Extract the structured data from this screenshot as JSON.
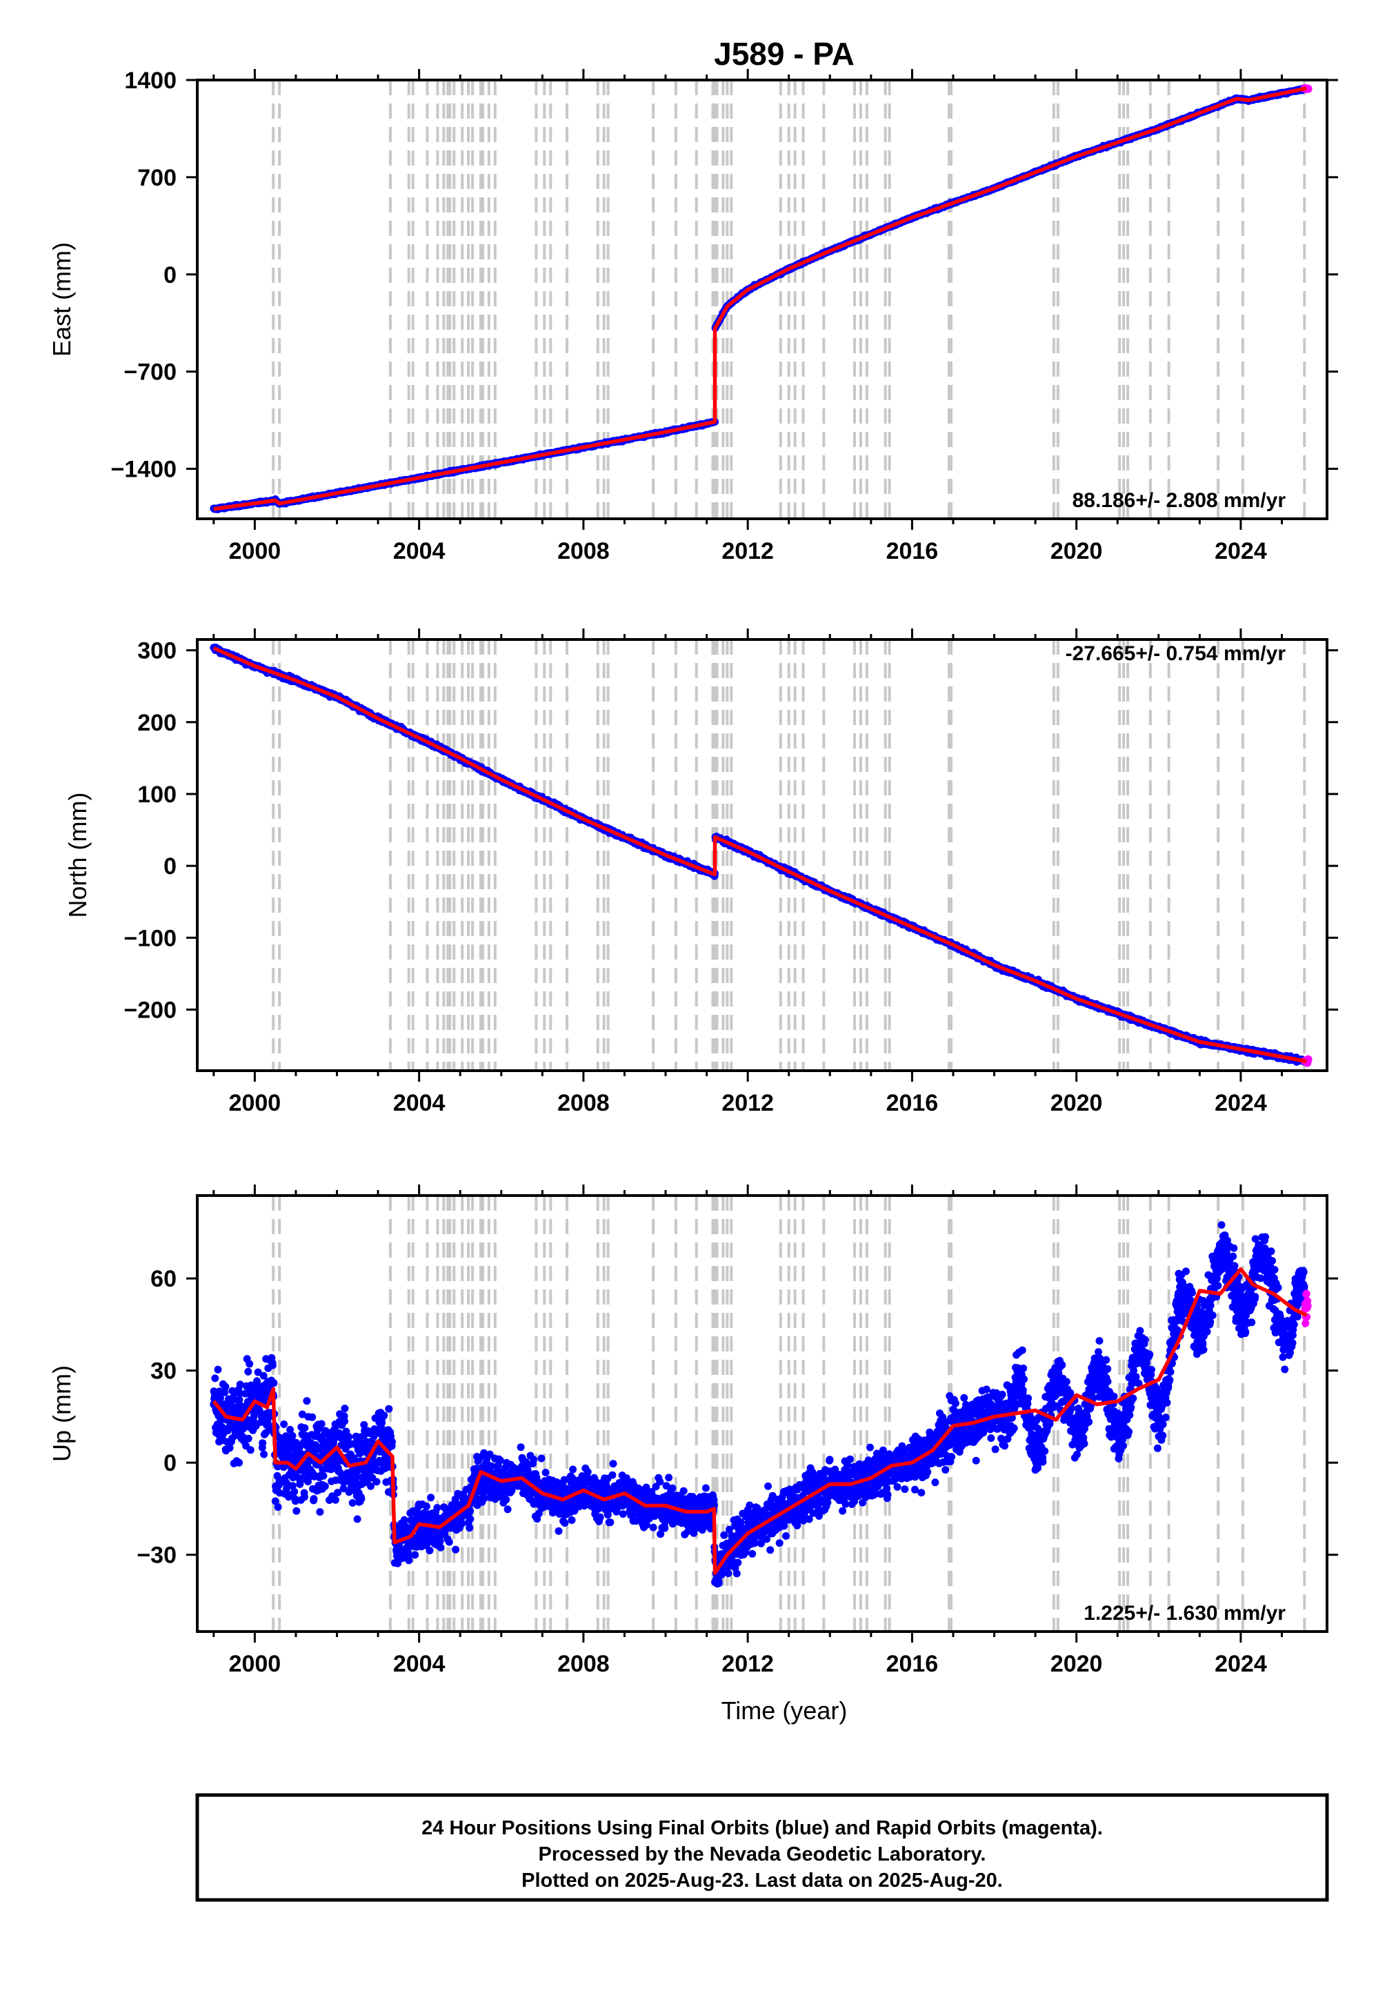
{
  "title": "J589 - PA",
  "colors": {
    "final_orbits": "#0000ff",
    "rapid_orbits": "#ff00ff",
    "trend": "#ff0000",
    "step_lines": "#c8c8c8"
  },
  "chart_data": [
    {
      "type": "scatter",
      "name": "east",
      "ylabel": "East (mm)",
      "xlabel": "",
      "xlim": [
        1998.6,
        2026.1
      ],
      "ylim": [
        -1760,
        1400
      ],
      "yticks": [
        1400,
        700,
        0,
        -700,
        -1400
      ],
      "ytick_labels": [
        "1400",
        "700",
        "0",
        "−700",
        "−1400"
      ],
      "xticks": [
        2000,
        2004,
        2008,
        2012,
        2016,
        2020,
        2024
      ],
      "rate_text": "88.186+/- 2.808 mm/yr",
      "rate_position": "bottom-right",
      "series_points": [
        [
          1999.0,
          -1690
        ],
        [
          2000.5,
          -1628
        ],
        [
          2000.6,
          -1650
        ],
        [
          2002.0,
          -1575
        ],
        [
          2004.0,
          -1465
        ],
        [
          2006.0,
          -1355
        ],
        [
          2008.0,
          -1245
        ],
        [
          2010.0,
          -1135
        ],
        [
          2011.2,
          -1062
        ],
        [
          2011.2,
          -390
        ],
        [
          2011.5,
          -230
        ],
        [
          2012.0,
          -110
        ],
        [
          2013.0,
          40
        ],
        [
          2014.0,
          170
        ],
        [
          2015.0,
          290
        ],
        [
          2016.0,
          410
        ],
        [
          2018.0,
          620
        ],
        [
          2020.0,
          850
        ],
        [
          2022.0,
          1050
        ],
        [
          2023.9,
          1265
        ],
        [
          2024.2,
          1255
        ],
        [
          2025.6,
          1340
        ]
      ]
    },
    {
      "type": "scatter",
      "name": "north",
      "ylabel": "North (mm)",
      "xlabel": "",
      "xlim": [
        1998.6,
        2026.1
      ],
      "ylim": [
        -285,
        315
      ],
      "yticks": [
        300,
        200,
        100,
        0,
        -100,
        -200
      ],
      "ytick_labels": [
        "300",
        "200",
        "100",
        "0",
        "−100",
        "−200"
      ],
      "xticks": [
        2000,
        2004,
        2008,
        2012,
        2016,
        2020,
        2024
      ],
      "rate_text": "-27.665+/- 0.754 mm/yr",
      "rate_position": "top-right",
      "series_points": [
        [
          1999.0,
          303
        ],
        [
          2000.0,
          278
        ],
        [
          2001.0,
          258
        ],
        [
          2002.0,
          235
        ],
        [
          2003.0,
          205
        ],
        [
          2004.0,
          178
        ],
        [
          2005.0,
          150
        ],
        [
          2006.0,
          120
        ],
        [
          2007.0,
          93
        ],
        [
          2008.0,
          65
        ],
        [
          2009.0,
          40
        ],
        [
          2010.0,
          15
        ],
        [
          2011.2,
          -12
        ],
        [
          2011.2,
          40
        ],
        [
          2012.0,
          20
        ],
        [
          2013.0,
          -8
        ],
        [
          2014.0,
          -35
        ],
        [
          2015.0,
          -60
        ],
        [
          2016.0,
          -85
        ],
        [
          2017.0,
          -110
        ],
        [
          2018.0,
          -138
        ],
        [
          2019.0,
          -160
        ],
        [
          2020.0,
          -185
        ],
        [
          2021.0,
          -205
        ],
        [
          2022.0,
          -225
        ],
        [
          2023.0,
          -245
        ],
        [
          2024.0,
          -255
        ],
        [
          2025.6,
          -272
        ]
      ]
    },
    {
      "type": "scatter",
      "name": "up",
      "ylabel": "Up (mm)",
      "xlabel": "Time (year)",
      "xlim": [
        1998.6,
        2026.1
      ],
      "ylim": [
        -55,
        87
      ],
      "yticks": [
        60,
        30,
        0,
        -30
      ],
      "ytick_labels": [
        "60",
        "30",
        "0",
        "−30"
      ],
      "xticks": [
        2000,
        2004,
        2008,
        2012,
        2016,
        2020,
        2024
      ],
      "rate_text": "1.225+/- 1.630 mm/yr",
      "rate_position": "bottom-right",
      "trend_points": [
        [
          1999.0,
          20
        ],
        [
          1999.3,
          15
        ],
        [
          1999.7,
          14
        ],
        [
          2000.0,
          20
        ],
        [
          2000.3,
          18
        ],
        [
          2000.45,
          24
        ],
        [
          2000.5,
          0
        ],
        [
          2000.8,
          0
        ],
        [
          2001.0,
          -2
        ],
        [
          2001.3,
          3
        ],
        [
          2001.6,
          0
        ],
        [
          2002.0,
          5
        ],
        [
          2002.3,
          -1
        ],
        [
          2002.7,
          0
        ],
        [
          2003.0,
          7
        ],
        [
          2003.35,
          2
        ],
        [
          2003.4,
          -26
        ],
        [
          2003.8,
          -24
        ],
        [
          2004.0,
          -20
        ],
        [
          2004.5,
          -21
        ],
        [
          2004.8,
          -18
        ],
        [
          2005.2,
          -14
        ],
        [
          2005.5,
          -3
        ],
        [
          2006.0,
          -6
        ],
        [
          2006.5,
          -5
        ],
        [
          2007.0,
          -10
        ],
        [
          2007.5,
          -12
        ],
        [
          2008.0,
          -9
        ],
        [
          2008.5,
          -12
        ],
        [
          2009.0,
          -10
        ],
        [
          2009.5,
          -14
        ],
        [
          2010.0,
          -14
        ],
        [
          2010.5,
          -16
        ],
        [
          2011.0,
          -16
        ],
        [
          2011.18,
          -15
        ],
        [
          2011.2,
          -36
        ],
        [
          2011.5,
          -30
        ],
        [
          2012.0,
          -23
        ],
        [
          2012.5,
          -19
        ],
        [
          2013.0,
          -15
        ],
        [
          2013.5,
          -11
        ],
        [
          2014.0,
          -7
        ],
        [
          2014.5,
          -7
        ],
        [
          2015.0,
          -5
        ],
        [
          2015.5,
          -1
        ],
        [
          2016.0,
          0
        ],
        [
          2016.5,
          4
        ],
        [
          2017.0,
          12
        ],
        [
          2017.5,
          13
        ],
        [
          2018.0,
          15
        ],
        [
          2018.5,
          16
        ],
        [
          2019.0,
          17
        ],
        [
          2019.5,
          14
        ],
        [
          2020.0,
          22
        ],
        [
          2020.5,
          19
        ],
        [
          2021.0,
          20
        ],
        [
          2021.5,
          24
        ],
        [
          2022.0,
          27
        ],
        [
          2022.5,
          40
        ],
        [
          2023.0,
          56
        ],
        [
          2023.5,
          55
        ],
        [
          2024.0,
          63
        ],
        [
          2024.3,
          58
        ],
        [
          2024.8,
          55
        ],
        [
          2025.3,
          50
        ],
        [
          2025.6,
          48
        ]
      ]
    }
  ],
  "step_lines_years": [
    2000.45,
    2000.6,
    2003.3,
    2003.75,
    2003.85,
    2004.2,
    2004.45,
    2004.6,
    2004.7,
    2004.75,
    2004.85,
    2005.05,
    2005.2,
    2005.3,
    2005.5,
    2005.55,
    2005.7,
    2005.85,
    2006.85,
    2007.05,
    2007.2,
    2007.6,
    2008.35,
    2008.5,
    2008.6,
    2009.7,
    2010.25,
    2010.75,
    2011.15,
    2011.2,
    2011.25,
    2011.4,
    2011.5,
    2011.6,
    2012.8,
    2013.0,
    2013.15,
    2013.35,
    2013.85,
    2014.6,
    2014.75,
    2014.9,
    2015.35,
    2015.45,
    2016.9,
    2016.95,
    2019.45,
    2019.55,
    2021.05,
    2021.15,
    2021.25,
    2021.8,
    2022.25,
    2023.45,
    2024.05,
    2025.55
  ],
  "footer": {
    "line1": "24 Hour Positions Using Final Orbits (blue) and Rapid Orbits (magenta).",
    "line2": "Processed by the Nevada Geodetic Laboratory.",
    "line3": "Plotted on 2025-Aug-23. Last data on 2025-Aug-20."
  }
}
